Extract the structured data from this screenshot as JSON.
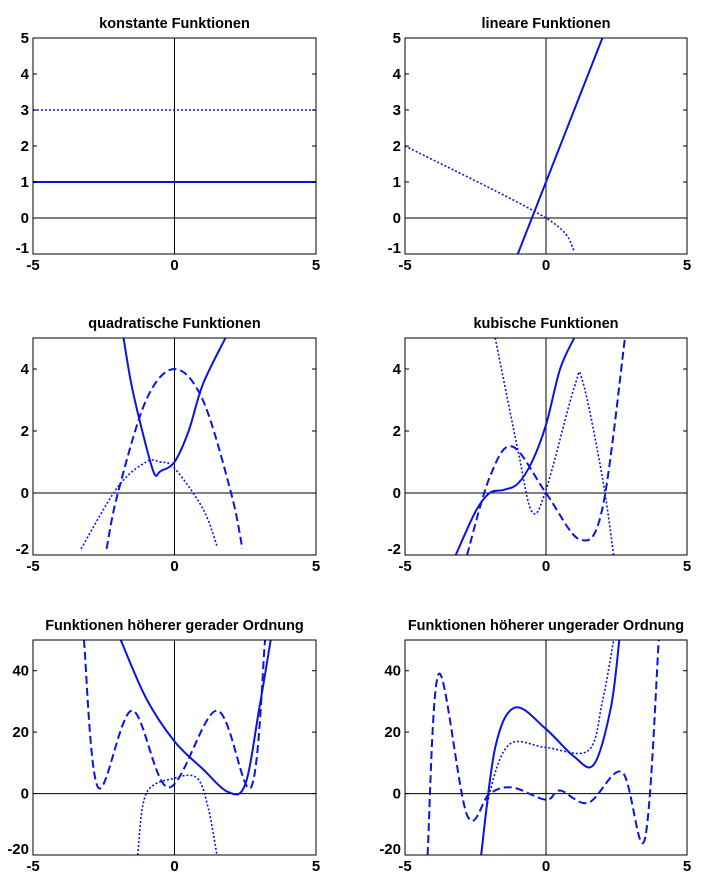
{
  "chart_data": [
    {
      "type": "line",
      "title": "konstante Funktionen",
      "xlim": [
        -5,
        5
      ],
      "ylim": [
        -1,
        5
      ],
      "xticks": [
        -5,
        0,
        5
      ],
      "yticks": [
        -1,
        0,
        1,
        2,
        3,
        4,
        5
      ],
      "grid": false,
      "series": [
        {
          "style": "solid",
          "x": [
            -5,
            5
          ],
          "y": [
            1,
            1
          ]
        },
        {
          "style": "dotted",
          "x": [
            -5,
            5
          ],
          "y": [
            3,
            3
          ]
        }
      ]
    },
    {
      "type": "line",
      "title": "lineare Funktionen",
      "xlim": [
        -5,
        5
      ],
      "ylim": [
        -1,
        5
      ],
      "xticks": [
        -5,
        0,
        5
      ],
      "yticks": [
        -1,
        0,
        1,
        2,
        3,
        4,
        5
      ],
      "grid": false,
      "series": [
        {
          "style": "solid",
          "x": [
            -1,
            0,
            2
          ],
          "y": [
            -1,
            1,
            5
          ]
        },
        {
          "style": "dotted",
          "x": [
            -5,
            0,
            1
          ],
          "y": [
            2,
            0,
            -0.9
          ]
        }
      ]
    },
    {
      "type": "line",
      "title": "quadratische Funktionen",
      "xlim": [
        -5,
        5
      ],
      "ylim": [
        -2,
        5
      ],
      "xticks": [
        -5,
        0,
        5
      ],
      "yticks": [
        -2,
        0,
        2,
        4
      ],
      "grid": false,
      "series": [
        {
          "style": "solid",
          "x": [
            -1.8,
            -1.5,
            -1,
            -0.7,
            -0.5,
            0,
            0.5,
            1,
            1.8
          ],
          "y": [
            5,
            3.4,
            1.5,
            0.6,
            0.7,
            1.0,
            2.0,
            3.5,
            5
          ]
        },
        {
          "style": "dashed",
          "x": [
            -2.4,
            -2,
            -1,
            0,
            1,
            2,
            2.4
          ],
          "y": [
            -1.8,
            0,
            3,
            4,
            3,
            0,
            -1.8
          ]
        },
        {
          "style": "dotted",
          "x": [
            -3.3,
            -2,
            -1,
            -0.5,
            0,
            1,
            1.5
          ],
          "y": [
            -1.8,
            0.2,
            1,
            1,
            0.8,
            -0.5,
            -1.7
          ]
        }
      ]
    },
    {
      "type": "line",
      "title": "kubische Funktionen",
      "xlim": [
        -5,
        5
      ],
      "ylim": [
        -2,
        5
      ],
      "xticks": [
        -5,
        0,
        5
      ],
      "yticks": [
        -2,
        0,
        2,
        4
      ],
      "grid": false,
      "series": [
        {
          "style": "solid",
          "x": [
            -3.2,
            -2.5,
            -2,
            -1.5,
            -1,
            -0.5,
            0,
            0.5,
            1
          ],
          "y": [
            -2,
            -0.6,
            0,
            0.1,
            0.3,
            1.0,
            2.2,
            4,
            5
          ]
        },
        {
          "style": "dashed",
          "x": [
            -2.8,
            -2,
            -1.2,
            0,
            1.2,
            2,
            2.8
          ],
          "y": [
            -2,
            0.5,
            1.5,
            0,
            -1.5,
            -0.5,
            5
          ]
        },
        {
          "style": "dotted",
          "x": [
            -1.8,
            -1,
            -0.5,
            0,
            1,
            1.3,
            2,
            2.4
          ],
          "y": [
            5,
            1.4,
            -0.6,
            0.1,
            3.4,
            3.6,
            0.5,
            -2
          ]
        }
      ]
    },
    {
      "type": "line",
      "title": "Funktionen höherer gerader Ordnung",
      "xlim": [
        -5,
        5
      ],
      "ylim": [
        -20,
        50
      ],
      "xticks": [
        -5,
        0,
        5
      ],
      "yticks": [
        -20,
        0,
        20,
        40
      ],
      "grid": false,
      "series": [
        {
          "style": "solid",
          "x": [
            -1.9,
            -1,
            0,
            1,
            1.9,
            2.5,
            3,
            3.4
          ],
          "y": [
            50,
            31,
            17,
            8,
            0.5,
            3,
            28,
            50
          ]
        },
        {
          "style": "dashed",
          "x": [
            -3.2,
            -2.7,
            -1.5,
            -0.2,
            1.5,
            2.7,
            3.2
          ],
          "y": [
            50,
            2,
            27,
            2,
            27,
            2,
            50
          ]
        },
        {
          "style": "dotted",
          "x": [
            -1.3,
            -1,
            0,
            0.8,
            1.2,
            1.5
          ],
          "y": [
            -20,
            0,
            5,
            5,
            -5,
            -20
          ]
        }
      ]
    },
    {
      "type": "line",
      "title": "Funktionen höherer ungerader Ordnung",
      "xlim": [
        -5,
        5
      ],
      "ylim": [
        -20,
        50
      ],
      "xticks": [
        -5,
        0,
        5
      ],
      "yticks": [
        -20,
        0,
        20,
        40
      ],
      "grid": false,
      "series": [
        {
          "style": "solid",
          "x": [
            -2.3,
            -1.8,
            -1.1,
            0,
            1,
            1.7,
            2.3,
            2.6
          ],
          "y": [
            -20,
            15,
            28,
            21,
            12,
            9.5,
            28,
            50
          ]
        },
        {
          "style": "dashed",
          "x": [
            -4.2,
            -3.8,
            -2.8,
            -2,
            -1.2,
            0,
            0.5,
            1.5,
            2.7,
            3.5,
            4.0
          ],
          "y": [
            -20,
            39,
            -7,
            0,
            2,
            -2,
            1,
            -3,
            7,
            -15,
            50
          ]
        },
        {
          "style": "dotted",
          "x": [
            -2.3,
            -2,
            -1.3,
            0,
            1.5,
            2,
            2.4
          ],
          "y": [
            -20,
            0,
            16,
            15,
            14,
            30,
            50
          ]
        }
      ]
    }
  ]
}
